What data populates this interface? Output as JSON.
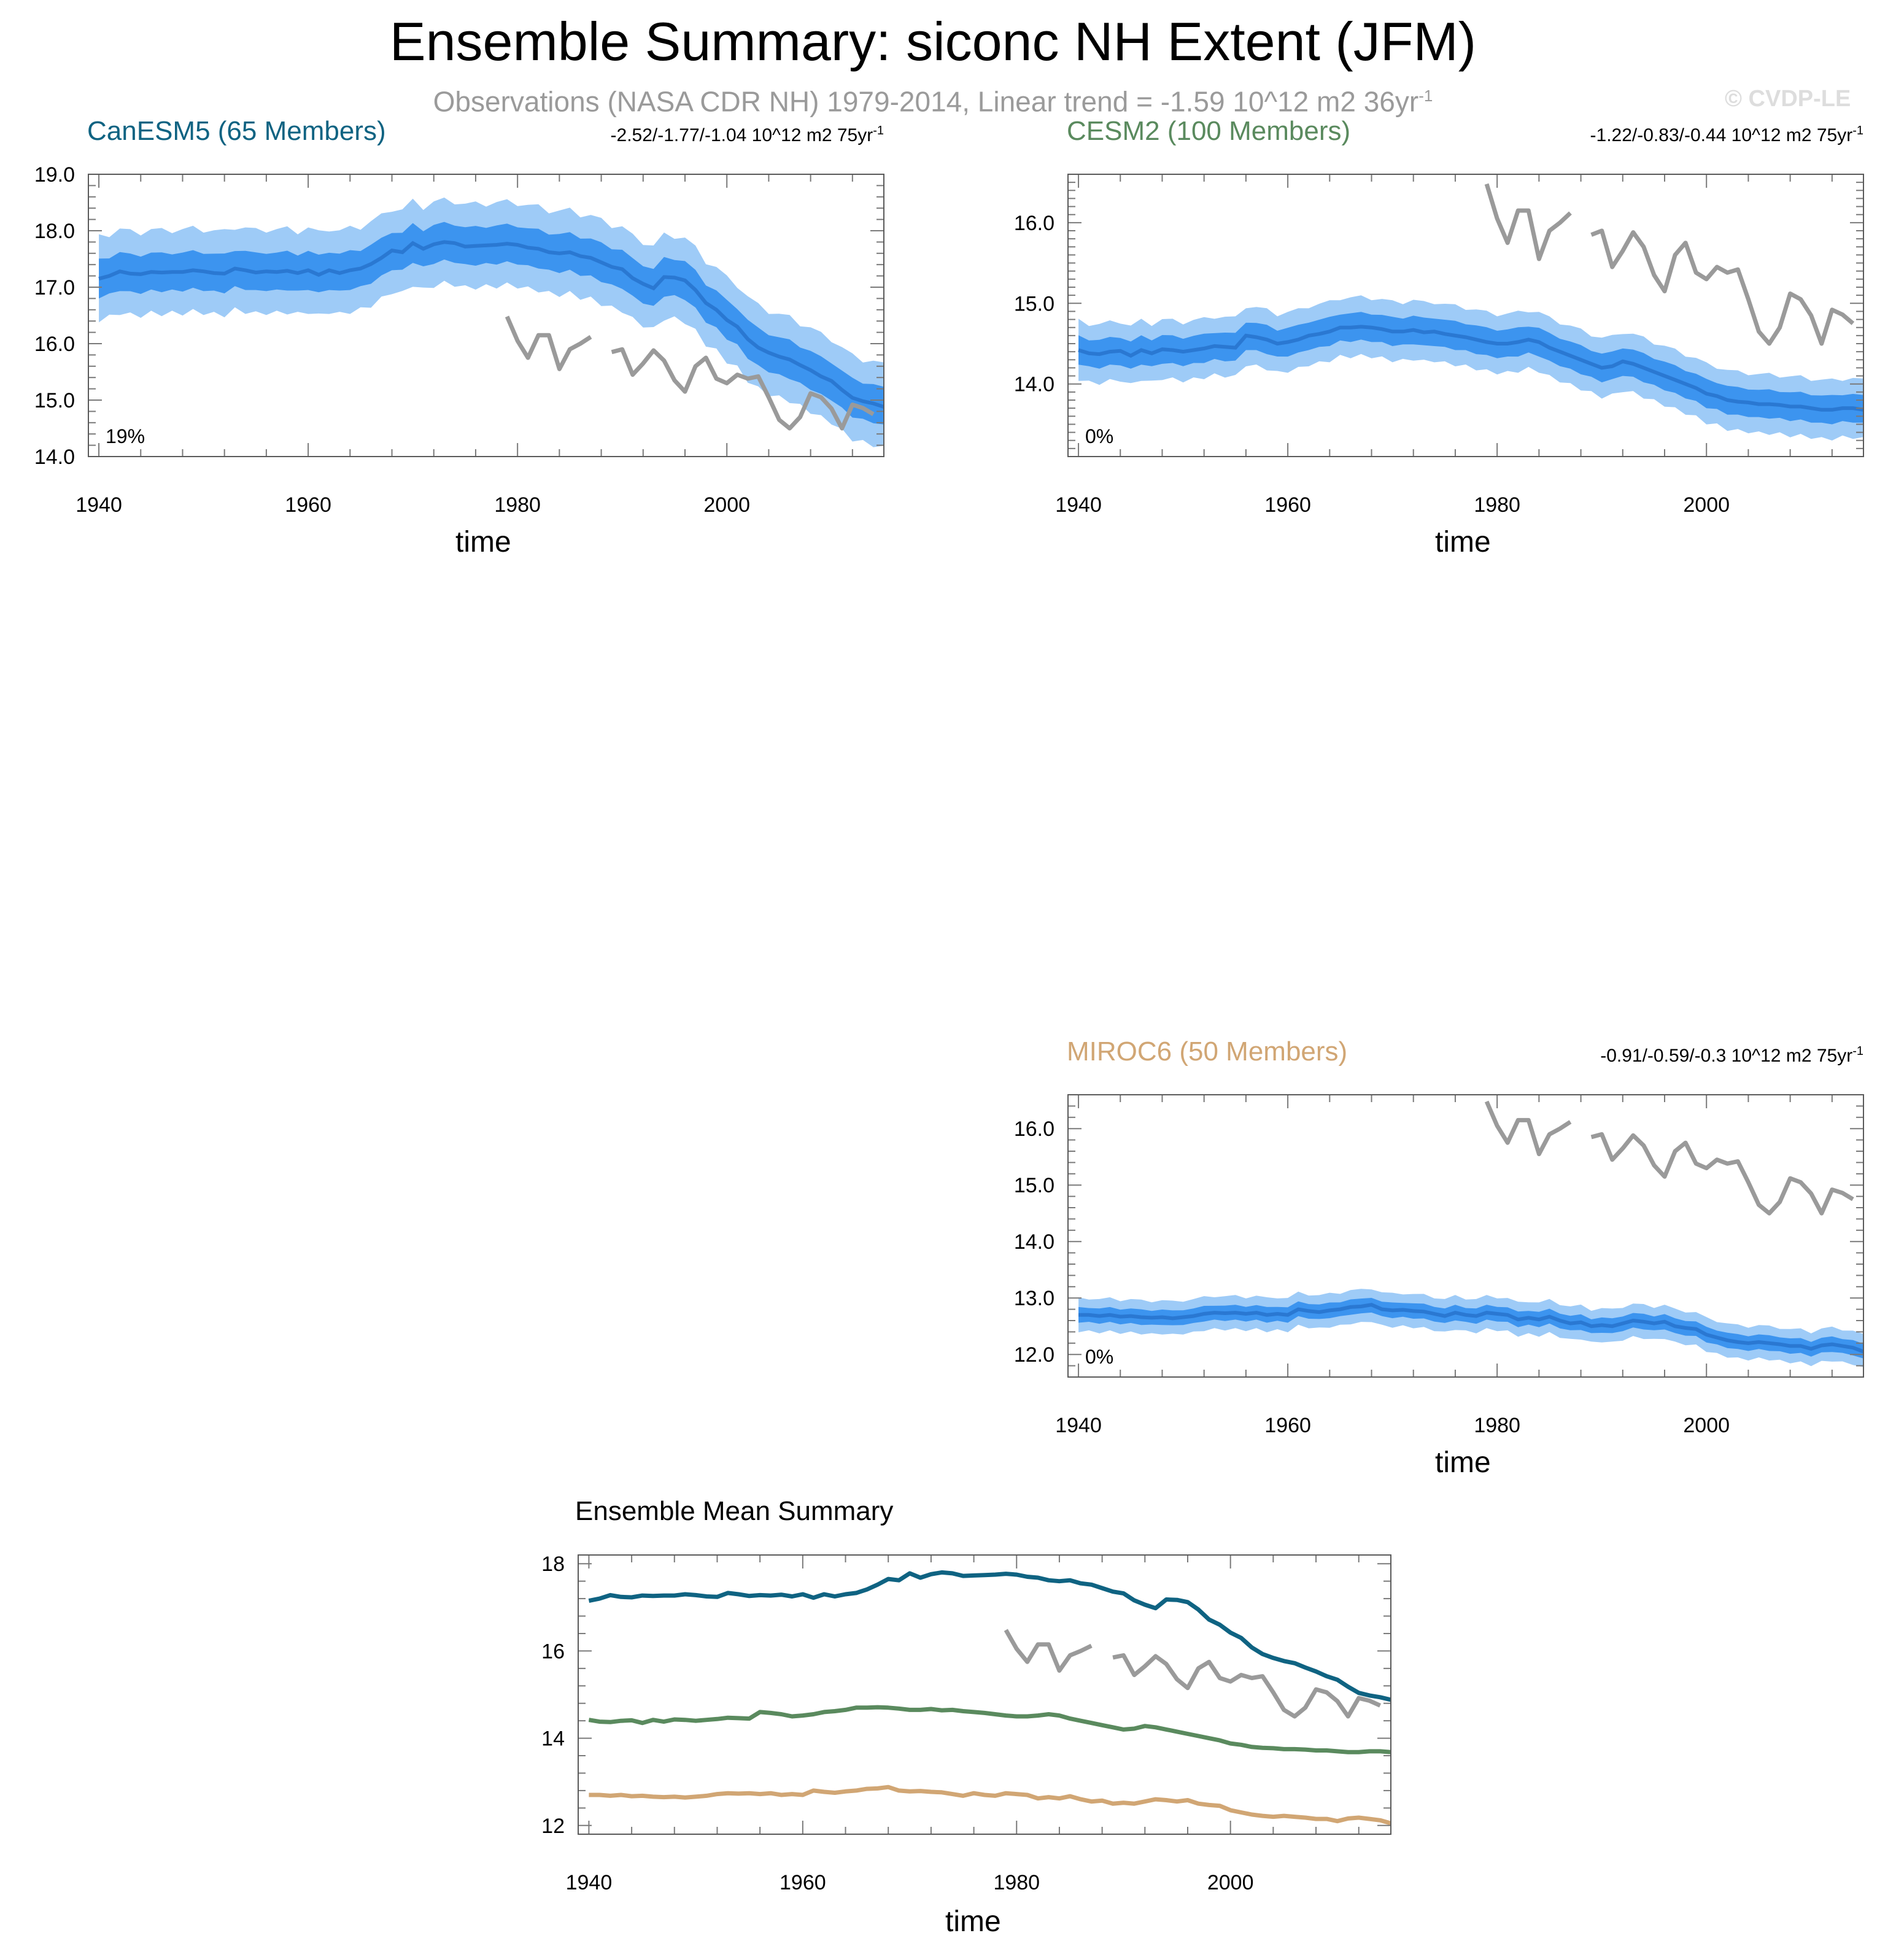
{
  "header": {
    "title": "Ensemble Summary: siconc NH Extent (JFM)",
    "subtitle": "Observations (NASA CDR NH) 1979-2014, Linear trend = -1.59 10^12 m2 36yr",
    "subtitle_sup": "-1",
    "copyright": "© CVDP-LE"
  },
  "colors": {
    "band_outer": "#9ecbf7",
    "band_inner": "#3c94ef",
    "mean": "#2a78d2",
    "obs": "#9a9a9a",
    "canesm5": "#0f6382",
    "cesm2": "#5a8a5e",
    "miroc6": "#d1a674"
  },
  "chart_data": [
    {
      "id": "canesm5",
      "type": "area",
      "title": "CanESM5 (65 Members)",
      "trend_text": "-2.52/-1.77/-1.04 10^12 m2 75yr",
      "trend_sup": "-1",
      "percent_label": "19%",
      "xlabel": "time",
      "ylabel": "",
      "xlim": [
        1939,
        2015
      ],
      "ylim": [
        14.0,
        19.0
      ],
      "xticks": [
        "1940",
        "1960",
        "1980",
        "2000"
      ],
      "yticks": [
        "14.0",
        "15.0",
        "16.0",
        "17.0",
        "18.0",
        "19.0"
      ],
      "x_start": 1940,
      "mean": [
        17.15,
        17.2,
        17.28,
        17.24,
        17.23,
        17.27,
        17.26,
        17.27,
        17.27,
        17.3,
        17.28,
        17.25,
        17.24,
        17.33,
        17.3,
        17.26,
        17.28,
        17.27,
        17.29,
        17.25,
        17.3,
        17.22,
        17.3,
        17.25,
        17.3,
        17.33,
        17.41,
        17.52,
        17.65,
        17.62,
        17.78,
        17.68,
        17.76,
        17.8,
        17.78,
        17.72,
        17.73,
        17.74,
        17.75,
        17.77,
        17.75,
        17.7,
        17.68,
        17.62,
        17.6,
        17.62,
        17.55,
        17.52,
        17.44,
        17.36,
        17.32,
        17.16,
        17.06,
        16.98,
        17.18,
        17.17,
        17.12,
        16.95,
        16.72,
        16.6,
        16.42,
        16.3,
        16.08,
        15.93,
        15.84,
        15.77,
        15.72,
        15.62,
        15.53,
        15.42,
        15.34,
        15.18,
        15.04,
        14.98,
        14.94,
        14.88
      ],
      "inner_half": 0.33,
      "outer_half": 0.73,
      "obs_segments": [
        {
          "start": 1979,
          "values": [
            16.48,
            16.05,
            15.75,
            16.15,
            16.15,
            15.55,
            15.9,
            16.0,
            16.12
          ]
        },
        {
          "start": 1989,
          "values": [
            15.85,
            15.9,
            15.45,
            15.65,
            15.88,
            15.7,
            15.35,
            15.15,
            15.6,
            15.75,
            15.38,
            15.3,
            15.45,
            15.38,
            15.42,
            15.05,
            14.65,
            14.5,
            14.7,
            15.12,
            15.05,
            14.85,
            14.5,
            14.92,
            14.86,
            14.75
          ]
        }
      ]
    },
    {
      "id": "cesm2",
      "type": "area",
      "title": "CESM2 (100 Members)",
      "trend_text": "-1.22/-0.83/-0.44 10^12 m2 75yr",
      "trend_sup": "-1",
      "percent_label": "0%",
      "xlabel": "time",
      "ylabel": "",
      "xlim": [
        1939,
        2015
      ],
      "ylim": [
        13.1,
        16.6
      ],
      "xticks": [
        "1940",
        "1960",
        "1980",
        "2000"
      ],
      "yticks": [
        "14.0",
        "15.0",
        "16.0"
      ],
      "x_start": 1940,
      "mean": [
        14.42,
        14.38,
        14.37,
        14.4,
        14.41,
        14.35,
        14.42,
        14.38,
        14.43,
        14.42,
        14.4,
        14.42,
        14.44,
        14.47,
        14.46,
        14.45,
        14.6,
        14.58,
        14.55,
        14.5,
        14.52,
        14.55,
        14.6,
        14.62,
        14.65,
        14.7,
        14.7,
        14.71,
        14.7,
        14.68,
        14.65,
        14.65,
        14.67,
        14.64,
        14.65,
        14.62,
        14.6,
        14.58,
        14.55,
        14.52,
        14.5,
        14.5,
        14.52,
        14.55,
        14.52,
        14.45,
        14.4,
        14.35,
        14.3,
        14.25,
        14.2,
        14.22,
        14.28,
        14.25,
        14.2,
        14.15,
        14.1,
        14.05,
        14.0,
        13.95,
        13.88,
        13.85,
        13.8,
        13.78,
        13.77,
        13.75,
        13.75,
        13.74,
        13.72,
        13.72,
        13.7,
        13.68,
        13.68,
        13.7,
        13.7,
        13.68
      ],
      "inner_half": 0.17,
      "outer_half": 0.36,
      "obs_segments": [
        {
          "start": 1979,
          "values": [
            16.48,
            16.05,
            15.75,
            16.15,
            16.15,
            15.55,
            15.9,
            16.0,
            16.12
          ]
        },
        {
          "start": 1989,
          "values": [
            15.85,
            15.9,
            15.45,
            15.65,
            15.88,
            15.7,
            15.35,
            15.15,
            15.6,
            15.75,
            15.38,
            15.3,
            15.45,
            15.38,
            15.42,
            15.05,
            14.65,
            14.5,
            14.7,
            15.12,
            15.05,
            14.85,
            14.5,
            14.92,
            14.86,
            14.75
          ]
        }
      ]
    },
    {
      "id": "miroc6",
      "type": "area",
      "title": "MIROC6 (50 Members)",
      "trend_text": "-0.91/-0.59/-0.3 10^12 m2 75yr",
      "trend_sup": "-1",
      "percent_label": "0%",
      "xlabel": "time",
      "ylabel": "",
      "xlim": [
        1939,
        2015
      ],
      "ylim": [
        11.6,
        16.6
      ],
      "xticks": [
        "1940",
        "1960",
        "1980",
        "2000"
      ],
      "yticks": [
        "12.0",
        "13.0",
        "14.0",
        "15.0",
        "16.0"
      ],
      "x_start": 1940,
      "mean": [
        12.7,
        12.7,
        12.68,
        12.7,
        12.67,
        12.68,
        12.66,
        12.65,
        12.66,
        12.64,
        12.66,
        12.68,
        12.72,
        12.74,
        12.73,
        12.74,
        12.72,
        12.74,
        12.7,
        12.72,
        12.7,
        12.8,
        12.77,
        12.75,
        12.78,
        12.8,
        12.84,
        12.85,
        12.88,
        12.8,
        12.78,
        12.79,
        12.77,
        12.76,
        12.72,
        12.68,
        12.74,
        12.7,
        12.68,
        12.74,
        12.72,
        12.7,
        12.62,
        12.65,
        12.62,
        12.67,
        12.6,
        12.55,
        12.57,
        12.5,
        12.52,
        12.5,
        12.55,
        12.6,
        12.58,
        12.55,
        12.58,
        12.5,
        12.47,
        12.45,
        12.35,
        12.3,
        12.25,
        12.22,
        12.2,
        12.22,
        12.2,
        12.18,
        12.15,
        12.15,
        12.1,
        12.16,
        12.18,
        12.15,
        12.12,
        12.05
      ],
      "inner_half": 0.13,
      "outer_half": 0.29,
      "obs_segments": [
        {
          "start": 1979,
          "values": [
            16.48,
            16.05,
            15.75,
            16.15,
            16.15,
            15.55,
            15.9,
            16.0,
            16.12
          ]
        },
        {
          "start": 1989,
          "values": [
            15.85,
            15.9,
            15.45,
            15.65,
            15.88,
            15.7,
            15.35,
            15.15,
            15.6,
            15.75,
            15.38,
            15.3,
            15.45,
            15.38,
            15.42,
            15.05,
            14.65,
            14.5,
            14.7,
            15.12,
            15.05,
            14.85,
            14.5,
            14.92,
            14.86,
            14.75
          ]
        }
      ]
    },
    {
      "id": "summary",
      "type": "line",
      "title": "Ensemble Mean Summary",
      "xlabel": "time",
      "ylabel": "",
      "xlim": [
        1939,
        2015
      ],
      "ylim": [
        11.8,
        18.2
      ],
      "xticks": [
        "1940",
        "1960",
        "1980",
        "2000"
      ],
      "yticks": [
        "12",
        "14",
        "16",
        "18"
      ],
      "series_refs": [
        "canesm5",
        "cesm2",
        "miroc6"
      ]
    }
  ]
}
